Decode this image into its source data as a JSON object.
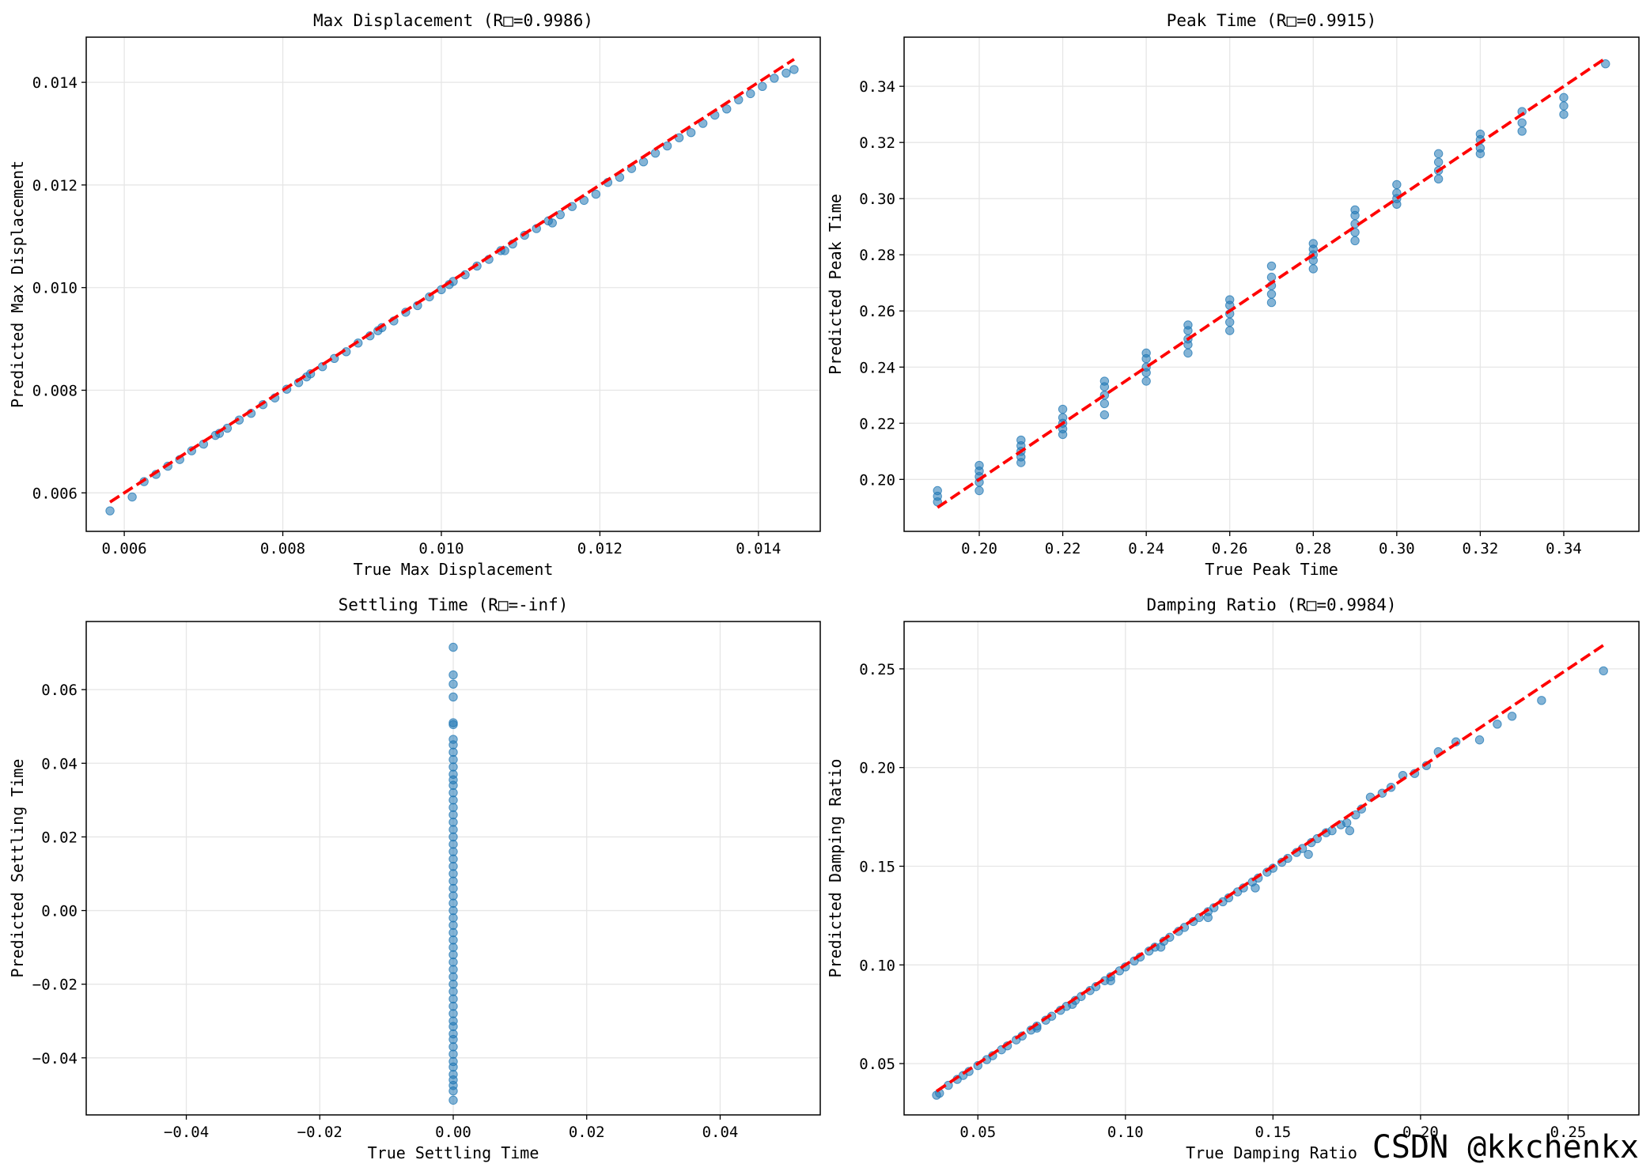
{
  "watermark": "CSDN @kkchenkx",
  "chart_data": [
    {
      "type": "scatter",
      "title": "Max Displacement (R□=0.9986)",
      "xlabel": "True Max Displacement",
      "ylabel": "Predicted Max Displacement",
      "xlim": [
        0.00552,
        0.01478
      ],
      "ylim": [
        0.00525,
        0.01488
      ],
      "xticks": [
        0.006,
        0.008,
        0.01,
        0.012,
        0.014
      ],
      "xtick_labels": [
        "0.006",
        "0.008",
        "0.010",
        "0.012",
        "0.014"
      ],
      "yticks": [
        0.006,
        0.008,
        0.01,
        0.012,
        0.014
      ],
      "ytick_labels": [
        "0.006",
        "0.008",
        "0.010",
        "0.012",
        "0.014"
      ],
      "grid": true,
      "point_color": "#1f77b4",
      "ref_line_color": "#ff0000",
      "reference_line": {
        "x": [
          0.00582,
          0.01445
        ],
        "y": [
          0.00582,
          0.01445
        ]
      },
      "points": {
        "x": [
          0.00582,
          0.0061,
          0.00625,
          0.0064,
          0.00655,
          0.0067,
          0.00685,
          0.007,
          0.00715,
          0.0073,
          0.00745,
          0.0076,
          0.00775,
          0.0079,
          0.00805,
          0.0082,
          0.00835,
          0.0085,
          0.00865,
          0.0088,
          0.00895,
          0.0091,
          0.00925,
          0.0094,
          0.00955,
          0.0097,
          0.00985,
          0.01,
          0.01015,
          0.0103,
          0.01045,
          0.0106,
          0.01075,
          0.0109,
          0.01105,
          0.0112,
          0.01135,
          0.0115,
          0.01165,
          0.0118,
          0.01195,
          0.0121,
          0.01225,
          0.0124,
          0.01255,
          0.0127,
          0.01285,
          0.013,
          0.01315,
          0.0133,
          0.01345,
          0.0136,
          0.01375,
          0.0139,
          0.01405,
          0.0142,
          0.01435,
          0.01445,
          0.0072,
          0.0083,
          0.0092,
          0.0101,
          0.0108,
          0.0114
        ],
        "y": [
          0.00565,
          0.00592,
          0.00622,
          0.00636,
          0.00652,
          0.00665,
          0.00682,
          0.00695,
          0.00712,
          0.00726,
          0.00742,
          0.00755,
          0.00772,
          0.00785,
          0.00802,
          0.00815,
          0.00832,
          0.00846,
          0.00862,
          0.00875,
          0.00892,
          0.00906,
          0.00922,
          0.00935,
          0.00952,
          0.00965,
          0.00982,
          0.00996,
          0.01012,
          0.01025,
          0.01042,
          0.01055,
          0.01072,
          0.01085,
          0.01102,
          0.01115,
          0.0113,
          0.01142,
          0.01158,
          0.0117,
          0.01182,
          0.01205,
          0.01215,
          0.01232,
          0.01245,
          0.01262,
          0.01276,
          0.01292,
          0.01302,
          0.0132,
          0.01336,
          0.01348,
          0.01366,
          0.01378,
          0.01392,
          0.01408,
          0.01418,
          0.01425,
          0.00716,
          0.00826,
          0.00916,
          0.01006,
          0.01072,
          0.01126
        ]
      }
    },
    {
      "type": "scatter",
      "title": "Peak Time (R□=0.9915)",
      "xlabel": "True Peak Time",
      "ylabel": "Predicted Peak Time",
      "xlim": [
        0.182,
        0.358
      ],
      "ylim": [
        0.1815,
        0.3575
      ],
      "xticks": [
        0.2,
        0.22,
        0.24,
        0.26,
        0.28,
        0.3,
        0.32,
        0.34
      ],
      "xtick_labels": [
        "0.20",
        "0.22",
        "0.24",
        "0.26",
        "0.28",
        "0.30",
        "0.32",
        "0.34"
      ],
      "yticks": [
        0.2,
        0.22,
        0.24,
        0.26,
        0.28,
        0.3,
        0.32,
        0.34
      ],
      "ytick_labels": [
        "0.20",
        "0.22",
        "0.24",
        "0.26",
        "0.28",
        "0.30",
        "0.32",
        "0.34"
      ],
      "grid": true,
      "point_color": "#1f77b4",
      "ref_line_color": "#ff0000",
      "reference_line": {
        "x": [
          0.19,
          0.35
        ],
        "y": [
          0.19,
          0.35
        ]
      },
      "points": {
        "x": [
          0.19,
          0.19,
          0.19,
          0.2,
          0.2,
          0.2,
          0.2,
          0.2,
          0.21,
          0.21,
          0.21,
          0.21,
          0.21,
          0.22,
          0.22,
          0.22,
          0.22,
          0.22,
          0.23,
          0.23,
          0.23,
          0.23,
          0.23,
          0.24,
          0.24,
          0.24,
          0.24,
          0.24,
          0.25,
          0.25,
          0.25,
          0.25,
          0.25,
          0.26,
          0.26,
          0.26,
          0.26,
          0.26,
          0.27,
          0.27,
          0.27,
          0.27,
          0.27,
          0.28,
          0.28,
          0.28,
          0.28,
          0.28,
          0.29,
          0.29,
          0.29,
          0.29,
          0.29,
          0.3,
          0.3,
          0.3,
          0.3,
          0.31,
          0.31,
          0.31,
          0.31,
          0.32,
          0.32,
          0.32,
          0.32,
          0.33,
          0.33,
          0.33,
          0.34,
          0.34,
          0.34,
          0.35
        ],
        "y": [
          0.192,
          0.194,
          0.196,
          0.196,
          0.199,
          0.201,
          0.203,
          0.205,
          0.206,
          0.208,
          0.21,
          0.212,
          0.214,
          0.216,
          0.218,
          0.22,
          0.222,
          0.225,
          0.223,
          0.227,
          0.23,
          0.233,
          0.235,
          0.235,
          0.238,
          0.24,
          0.243,
          0.245,
          0.245,
          0.248,
          0.25,
          0.253,
          0.255,
          0.253,
          0.256,
          0.259,
          0.262,
          0.264,
          0.263,
          0.266,
          0.269,
          0.272,
          0.276,
          0.275,
          0.278,
          0.28,
          0.282,
          0.284,
          0.285,
          0.288,
          0.291,
          0.294,
          0.296,
          0.298,
          0.3,
          0.302,
          0.305,
          0.307,
          0.31,
          0.313,
          0.316,
          0.316,
          0.318,
          0.321,
          0.323,
          0.324,
          0.327,
          0.331,
          0.33,
          0.333,
          0.336,
          0.348
        ]
      }
    },
    {
      "type": "scatter",
      "title": "Settling Time (R□=-inf)",
      "xlabel": "True Settling Time",
      "ylabel": "Predicted Settling Time",
      "xlim": [
        -0.055,
        0.055
      ],
      "ylim": [
        -0.0555,
        0.0785
      ],
      "xticks": [
        -0.04,
        -0.02,
        0.0,
        0.02,
        0.04
      ],
      "xtick_labels": [
        "−0.04",
        "−0.02",
        "0.00",
        "0.02",
        "0.04"
      ],
      "yticks": [
        -0.04,
        -0.02,
        0.0,
        0.02,
        0.04,
        0.06
      ],
      "ytick_labels": [
        "−0.04",
        "−0.02",
        "0.00",
        "0.02",
        "0.04",
        "0.06"
      ],
      "grid": true,
      "point_color": "#1f77b4",
      "reference_line": null,
      "points": {
        "x": [
          0,
          0,
          0,
          0,
          0,
          0,
          0,
          0,
          0,
          0,
          0,
          0,
          0,
          0,
          0,
          0,
          0,
          0,
          0,
          0,
          0,
          0,
          0,
          0,
          0,
          0,
          0,
          0,
          0,
          0,
          0,
          0,
          0,
          0,
          0,
          0,
          0,
          0,
          0,
          0,
          0,
          0,
          0,
          0,
          0,
          0,
          0,
          0,
          0,
          0,
          0,
          0,
          0,
          0,
          0,
          0,
          0,
          0
        ],
        "y": [
          0.0715,
          0.064,
          0.0615,
          0.058,
          0.051,
          0.0505,
          0.0465,
          0.045,
          0.043,
          0.041,
          0.039,
          0.037,
          0.0355,
          0.034,
          0.032,
          0.03,
          0.028,
          0.026,
          0.024,
          0.022,
          0.02,
          0.018,
          0.016,
          0.014,
          0.012,
          0.01,
          0.008,
          0.006,
          0.004,
          0.002,
          0.0,
          -0.002,
          -0.004,
          -0.006,
          -0.008,
          -0.01,
          -0.012,
          -0.014,
          -0.016,
          -0.018,
          -0.02,
          -0.022,
          -0.024,
          -0.026,
          -0.028,
          -0.03,
          -0.0315,
          -0.0335,
          -0.035,
          -0.037,
          -0.039,
          -0.041,
          -0.0425,
          -0.0445,
          -0.046,
          -0.0475,
          -0.049,
          -0.0515
        ]
      }
    },
    {
      "type": "scatter",
      "title": "Damping Ratio (R□=0.9984)",
      "xlabel": "True Damping Ratio",
      "ylabel": "Predicted Damping Ratio",
      "xlim": [
        0.025,
        0.274
      ],
      "ylim": [
        0.024,
        0.274
      ],
      "xticks": [
        0.05,
        0.1,
        0.15,
        0.2,
        0.25
      ],
      "xtick_labels": [
        "0.05",
        "0.10",
        "0.15",
        "0.20",
        "0.25"
      ],
      "yticks": [
        0.05,
        0.1,
        0.15,
        0.2,
        0.25
      ],
      "ytick_labels": [
        "0.05",
        "0.10",
        "0.15",
        "0.20",
        "0.25"
      ],
      "grid": true,
      "point_color": "#1f77b4",
      "ref_line_color": "#ff0000",
      "reference_line": {
        "x": [
          0.036,
          0.262
        ],
        "y": [
          0.036,
          0.262
        ]
      },
      "points": {
        "x": [
          0.036,
          0.037,
          0.04,
          0.043,
          0.045,
          0.047,
          0.05,
          0.053,
          0.055,
          0.058,
          0.06,
          0.063,
          0.065,
          0.068,
          0.07,
          0.073,
          0.075,
          0.078,
          0.08,
          0.083,
          0.085,
          0.088,
          0.09,
          0.093,
          0.095,
          0.098,
          0.1,
          0.103,
          0.105,
          0.108,
          0.11,
          0.113,
          0.115,
          0.118,
          0.12,
          0.123,
          0.125,
          0.128,
          0.13,
          0.133,
          0.135,
          0.138,
          0.14,
          0.143,
          0.145,
          0.148,
          0.15,
          0.153,
          0.155,
          0.158,
          0.16,
          0.163,
          0.165,
          0.168,
          0.17,
          0.173,
          0.175,
          0.178,
          0.18,
          0.183,
          0.187,
          0.19,
          0.194,
          0.198,
          0.202,
          0.206,
          0.212,
          0.22,
          0.226,
          0.231,
          0.241,
          0.262,
          0.07,
          0.082,
          0.095,
          0.112,
          0.128,
          0.144,
          0.162,
          0.176
        ],
        "y": [
          0.034,
          0.035,
          0.039,
          0.042,
          0.044,
          0.046,
          0.049,
          0.052,
          0.054,
          0.057,
          0.059,
          0.062,
          0.064,
          0.067,
          0.069,
          0.072,
          0.074,
          0.077,
          0.079,
          0.082,
          0.084,
          0.087,
          0.089,
          0.092,
          0.094,
          0.097,
          0.099,
          0.102,
          0.104,
          0.107,
          0.109,
          0.112,
          0.114,
          0.117,
          0.119,
          0.122,
          0.124,
          0.127,
          0.129,
          0.132,
          0.134,
          0.137,
          0.139,
          0.142,
          0.144,
          0.147,
          0.149,
          0.152,
          0.154,
          0.157,
          0.159,
          0.162,
          0.164,
          0.167,
          0.168,
          0.171,
          0.172,
          0.176,
          0.179,
          0.185,
          0.187,
          0.19,
          0.196,
          0.197,
          0.201,
          0.208,
          0.213,
          0.214,
          0.222,
          0.226,
          0.234,
          0.249,
          0.068,
          0.08,
          0.092,
          0.109,
          0.124,
          0.139,
          0.156,
          0.168
        ]
      }
    }
  ]
}
